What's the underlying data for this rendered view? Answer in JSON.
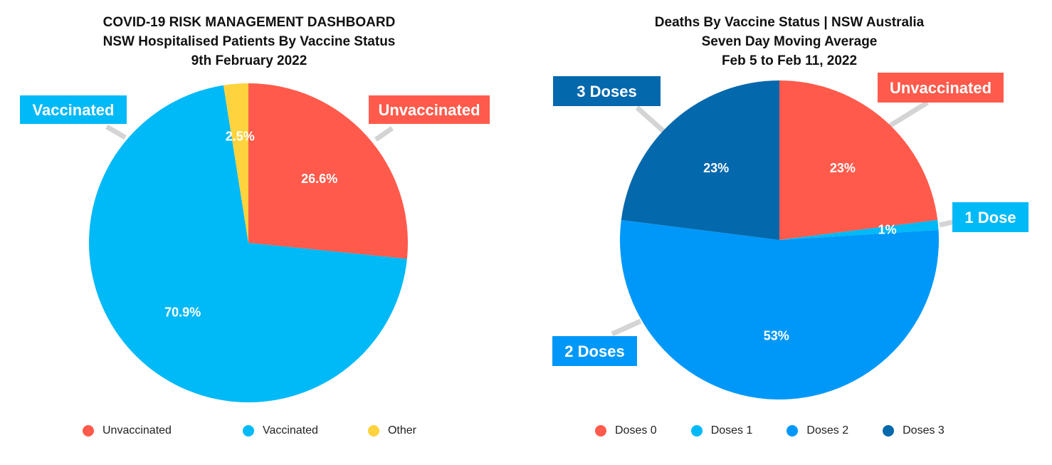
{
  "chart_data": [
    {
      "type": "pie",
      "title": "COVID-19 RISK MANAGEMENT DASHBOARD",
      "subtitle": [
        "NSW Hospitalised Patients By Vaccine Status",
        "9th February 2022"
      ],
      "slices": [
        {
          "name": "Unvaccinated",
          "value": 26.6,
          "label": "26.6%",
          "color": "#FF5A4B",
          "callout": "Unvaccinated"
        },
        {
          "name": "Vaccinated",
          "value": 70.9,
          "label": "70.9%",
          "color": "#00B9F7",
          "callout": "Vaccinated"
        },
        {
          "name": "Other",
          "value": 2.5,
          "label": "2.5%",
          "color": "#FFD33D",
          "callout": ""
        }
      ],
      "legend": [
        "Unvaccinated",
        "Vaccinated",
        "Other"
      ],
      "legend_position": "bottom"
    },
    {
      "type": "pie",
      "title": "Deaths By Vaccine Status | NSW Australia",
      "subtitle": [
        "Seven Day Moving Average",
        "Feb 5 to Feb 11, 2022"
      ],
      "slices": [
        {
          "name": "Doses 0",
          "value": 23,
          "label": "23%",
          "color": "#FF5A4B",
          "callout": "Unvaccinated"
        },
        {
          "name": "Doses 1",
          "value": 1,
          "label": "1%",
          "color": "#00B9F7",
          "callout": "1 Dose"
        },
        {
          "name": "Doses 2",
          "value": 53,
          "label": "53%",
          "color": "#0098F8",
          "callout": "2 Doses"
        },
        {
          "name": "Doses 3",
          "value": 23,
          "label": "23%",
          "color": "#0468AC",
          "callout": "3 Doses"
        }
      ],
      "legend": [
        "Doses 0",
        "Doses 1",
        "Doses 2",
        "Doses 3"
      ],
      "legend_position": "bottom"
    }
  ]
}
